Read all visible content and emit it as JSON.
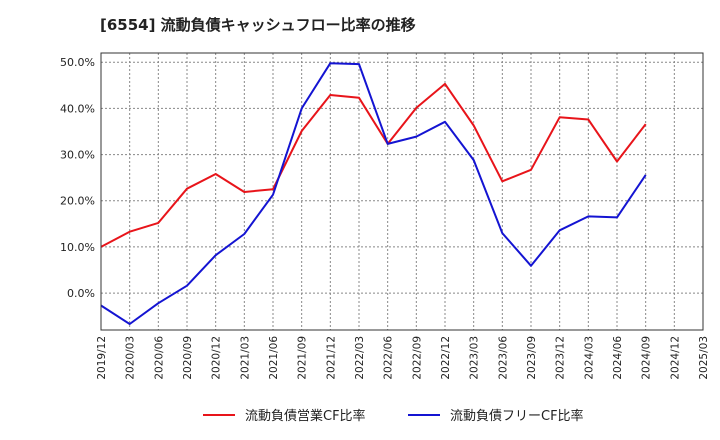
{
  "title": "[6554]  流動負債キャッシュフロー比率の推移",
  "chart_data": {
    "type": "line",
    "title": "[6554]  流動負債キャッシュフロー比率の推移",
    "xlabel": "",
    "ylabel": "",
    "x_ticks": [
      "2019/12",
      "2020/03",
      "2020/06",
      "2020/09",
      "2020/12",
      "2021/03",
      "2021/06",
      "2021/09",
      "2021/12",
      "2022/03",
      "2022/06",
      "2022/09",
      "2022/12",
      "2023/03",
      "2023/06",
      "2023/09",
      "2023/12",
      "2024/03",
      "2024/06",
      "2024/09",
      "2024/12",
      "2025/03"
    ],
    "y_ticks": [
      "0.0%",
      "10.0%",
      "20.0%",
      "30.0%",
      "40.0%",
      "50.0%"
    ],
    "ylim": [
      -8,
      52
    ],
    "grid": true,
    "legend_position": "bottom",
    "series": [
      {
        "name": "流動負債営業CF比率",
        "color": "#e8141a",
        "x": [
          "2019/12",
          "2020/03",
          "2020/06",
          "2020/09",
          "2020/12",
          "2021/03",
          "2021/06",
          "2021/09",
          "2021/12",
          "2022/03",
          "2022/06",
          "2022/09",
          "2022/12",
          "2023/03",
          "2023/06",
          "2023/09",
          "2023/12",
          "2024/03",
          "2024/06",
          "2024/09"
        ],
        "values": [
          10.0,
          13.3,
          15.2,
          22.6,
          25.8,
          21.9,
          22.5,
          35.1,
          42.9,
          42.3,
          32.3,
          40.1,
          45.3,
          36.3,
          24.2,
          26.7,
          38.1,
          37.6,
          28.5,
          36.6
        ]
      },
      {
        "name": "流動負債フリーCF比率",
        "color": "#1414d2",
        "x": [
          "2019/12",
          "2020/03",
          "2020/06",
          "2020/09",
          "2020/12",
          "2021/03",
          "2021/06",
          "2021/09",
          "2021/12",
          "2022/03",
          "2022/06",
          "2022/09",
          "2022/12",
          "2023/03",
          "2023/06",
          "2023/09",
          "2023/12",
          "2024/03",
          "2024/06",
          "2024/09"
        ],
        "values": [
          -2.7,
          -6.7,
          -2.2,
          1.6,
          8.2,
          12.8,
          21.3,
          40.0,
          49.8,
          49.6,
          32.3,
          33.9,
          37.1,
          28.8,
          13.0,
          5.9,
          13.6,
          16.6,
          16.4,
          25.6
        ]
      }
    ]
  }
}
